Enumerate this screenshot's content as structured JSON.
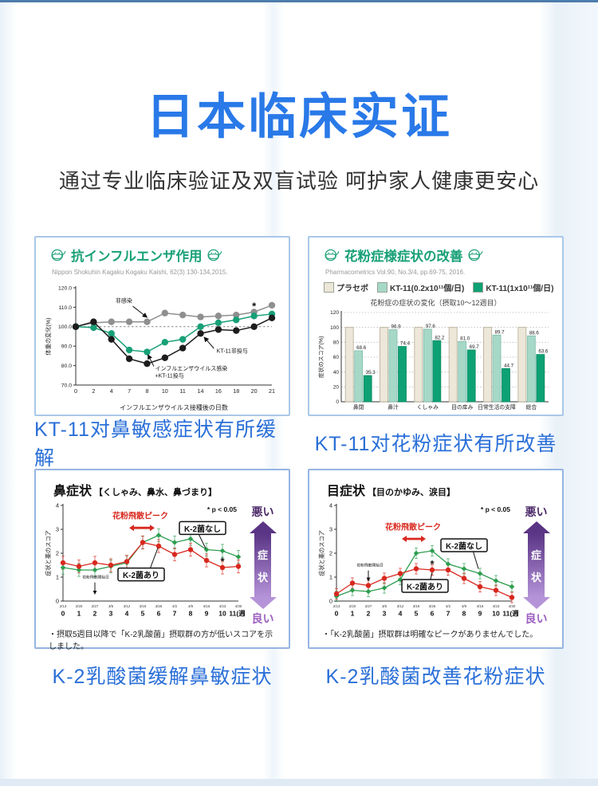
{
  "page": {
    "title": "日本临床实证",
    "subtitle": "通过专业临床验证及双盲试验 呵护家人健康更安心",
    "captions": {
      "flu": "KT-11对鼻敏感症状有所缓解",
      "pollen": "KT-11对花粉症状有所改善",
      "nose": "K-2乳酸菌缓解鼻敏症状",
      "eye": "K-2乳酸菌改善花粉症状"
    },
    "colors": {
      "title_blue": "#2979e8",
      "caption_blue": "#2a6fd8",
      "panel_border": "#a9c8e8",
      "header_green": "#18a077",
      "red": "#d8281e",
      "purple_dark": "#5a3485",
      "purple_light": "#b593d8"
    }
  },
  "panels": {
    "flu": {
      "header": "抗インフルエンザ作用",
      "citation": "Nippon Shokuhin Kagaku Kogaku Kaishi, 62(3) 130-134,2015."
    },
    "pollen": {
      "header": "花粉症様症状の改善",
      "citation": "Pharmacometrics Vol.90, No.3/4, pp.69-75, 2016.",
      "subtitle": "花粉症の症状の変化（摂取10～12週目）",
      "legend": [
        "プラセボ",
        "KT-11(0.2x10¹¹個/日)",
        "KT-11(1x10¹¹個/日)"
      ]
    },
    "nose": {
      "title": "鼻症状",
      "title_note": "【くしゃみ、鼻水、鼻づまり】",
      "axis_bad": "悪い",
      "axis_mid": [
        "症",
        "状"
      ],
      "axis_good": "良い",
      "footnote": "・摂取5週目以降で「K-2乳酸菌」摂取群の方が低いスコアを示しました。"
    },
    "eye": {
      "title": "目症状",
      "title_note": "【目のかゆみ、涙目】",
      "axis_bad": "悪い",
      "axis_mid": [
        "症",
        "状"
      ],
      "axis_good": "良い",
      "footnote": "・「K-2乳酸菌」摂取群は明確なピークがありませんでした。"
    }
  },
  "chart_data": [
    {
      "id": "flu",
      "type": "line",
      "title": "抗インフルエンザ作用",
      "xlabel": "インフルエンザウイルス接種後の日数",
      "ylabel": "体重の変化(%)",
      "x_tick_labels": [
        "0",
        "2",
        "4",
        "7",
        "8",
        "10",
        "11",
        "14",
        "16",
        "18",
        "20",
        "21"
      ],
      "ylim": [
        70,
        120
      ],
      "y_step": 10,
      "y_decimals": 1,
      "ref_line": 100,
      "series": [
        {
          "name": "非感染",
          "color": "#8f8f8f",
          "marker": "circle",
          "values": [
            100,
            102,
            102.5,
            102.5,
            102.5,
            107,
            106,
            105,
            105.5,
            106,
            107.5,
            111
          ]
        },
        {
          "name": "インフルエンザウイルス感染+KT-11投与",
          "color": "#17a077",
          "marker": "circle",
          "values": [
            100,
            99.5,
            96.5,
            88,
            87,
            92,
            93.5,
            100,
            102,
            103.5,
            105.5,
            106.5
          ]
        },
        {
          "name": "KT-11非投与",
          "color": "#1c1c1c",
          "marker": "circle",
          "values": [
            100,
            102.5,
            93.5,
            83.5,
            81,
            84,
            89,
            96.5,
            98.5,
            98,
            100,
            104.5
          ]
        }
      ],
      "annotations": [
        {
          "kind": "label-arrow",
          "text": "非感染",
          "tx": 2.7,
          "ty": 112.5,
          "x1": 3.2,
          "y1": 110.5,
          "x2": 4.0,
          "y2": 104.8,
          "anchor": "middle"
        },
        {
          "kind": "label-arrow",
          "text": "KT-11非投与",
          "tx": 7.9,
          "ty": 86.5,
          "x1": 7.75,
          "y1": 88.8,
          "x2": 7.2,
          "y2": 94.6,
          "anchor": "start"
        },
        {
          "kind": "label-arrow",
          "text": "インフルエンザウイルス感染",
          "text2": "+KT-11投与",
          "tx": 4.45,
          "ty": 77.6,
          "ty2": 73.8,
          "x1": 4.38,
          "y1": 79.6,
          "x2": 4.05,
          "y2": 85.6,
          "anchor": "start"
        },
        {
          "kind": "star",
          "x": 10,
          "y": 110
        }
      ]
    },
    {
      "id": "pollen",
      "type": "bar",
      "title": "花粉症の症状の変化（摂取10～12週目）",
      "ylabel": "症状のスコア(%)",
      "ylim": [
        0,
        120
      ],
      "y_step": 20,
      "grid": "dotted",
      "categories": [
        "鼻閉",
        "鼻汁",
        "くしゃみ",
        "目の痒み",
        "日常生活の支障",
        "総合"
      ],
      "series": [
        {
          "name": "プラセボ",
          "color": "#ece7d9",
          "border": "#b3ab93",
          "values": [
            100,
            100,
            100,
            100,
            100,
            100
          ]
        },
        {
          "name": "KT-11(0.2x10¹¹個/日)",
          "color": "#a6d8c8",
          "border": "#7dbcab",
          "values": [
            68.6,
            96.9,
            97.6,
            81.0,
            89.7,
            88.6
          ],
          "value_labels": [
            "68.6",
            "96.9",
            "97.6",
            "81.0",
            "89.7",
            "88.6"
          ]
        },
        {
          "name": "KT-11(1x10¹¹個/日)",
          "color": "#0ea173",
          "border": "#0b8a63",
          "values": [
            35.3,
            74.4,
            82.2,
            69.7,
            44.7,
            63.6
          ],
          "value_labels": [
            "35.3",
            "74.4",
            "82.2",
            "69.7",
            "44.7",
            "63.6"
          ]
        }
      ]
    },
    {
      "id": "nose",
      "type": "line",
      "title": "鼻症状【くしゃみ、鼻水、鼻づまり】",
      "ylabel": "症状と薬のスコア",
      "ylim": [
        0,
        4
      ],
      "y_step": 1,
      "x_dates": [
        "2/13",
        "2/20",
        "2/27",
        "3/5",
        "3/12",
        "3/19",
        "3/26",
        "4/2",
        "4/9",
        "4/16",
        "4/23",
        "4/30"
      ],
      "x_weeks": [
        "0",
        "1",
        "2",
        "3",
        "4",
        "5",
        "6",
        "7",
        "8",
        "9",
        "10",
        "11"
      ],
      "x_week_suffix": "(週)",
      "series": [
        {
          "name": "K-2菌なし",
          "color": "#2d9e50",
          "marker": "diamond",
          "error": 0.27,
          "values": [
            1.4,
            1.3,
            1.3,
            1.45,
            1.6,
            2.45,
            2.75,
            2.45,
            2.6,
            2.15,
            2.1,
            1.85
          ]
        },
        {
          "name": "K-2菌あり",
          "color": "#d8281e",
          "marker": "circle",
          "error": 0.27,
          "values": [
            1.6,
            1.45,
            1.6,
            1.5,
            1.65,
            2.45,
            2.3,
            1.95,
            2.15,
            1.7,
            1.4,
            1.45
          ]
        }
      ],
      "annotations": [
        {
          "kind": "pvalue",
          "text": "* p < 0.05"
        },
        {
          "kind": "peak",
          "text": "花粉飛散ピーク",
          "tx": 4.85,
          "ty": 3.45,
          "y": 3.06,
          "x1": 4.15,
          "x2": 5.75
        },
        {
          "kind": "box",
          "text": "K-2菌なし",
          "cx": 8.75,
          "cy": 3.02,
          "lx1": 8.45,
          "ly1": 2.88,
          "lx2": 8.95,
          "ly2": 2.2
        },
        {
          "kind": "box",
          "text": "K-2菌あり",
          "cx": 4.9,
          "cy": 1.08,
          "lx1": 5.4,
          "ly1": 1.25,
          "lx2": 5.95,
          "ly2": 2.22
        },
        {
          "kind": "vmark",
          "text": "花粉飛散開始日",
          "tx": 2.05,
          "ty": 0.95,
          "ax": 2,
          "y1": 0.78,
          "y2": 0.3
        },
        {
          "kind": "star",
          "x": 10,
          "y": 1.62
        }
      ]
    },
    {
      "id": "eye",
      "type": "line",
      "title": "目症状【目のかゆみ、涙目】",
      "ylabel": "症状と薬のスコア",
      "ylim": [
        0,
        4
      ],
      "y_step": 1,
      "x_dates": [
        "2/13",
        "2/20",
        "2/27",
        "3/5",
        "3/12",
        "3/19",
        "3/26",
        "4/2",
        "4/9",
        "4/16",
        "4/23",
        "4/30"
      ],
      "x_weeks": [
        "0",
        "1",
        "2",
        "3",
        "4",
        "5",
        "6",
        "7",
        "8",
        "9",
        "10",
        "11"
      ],
      "x_week_suffix": "(週)",
      "series": [
        {
          "name": "K-2菌なし",
          "color": "#2d9e50",
          "marker": "diamond",
          "error": 0.22,
          "values": [
            0.2,
            0.45,
            0.4,
            0.55,
            0.9,
            2.0,
            2.1,
            1.55,
            1.35,
            1.15,
            0.85,
            0.6
          ]
        },
        {
          "name": "K-2菌あり",
          "color": "#d8281e",
          "marker": "circle",
          "error": 0.22,
          "values": [
            0.3,
            0.75,
            0.65,
            0.95,
            1.15,
            1.35,
            1.3,
            1.3,
            0.95,
            0.6,
            0.45,
            0.15
          ]
        }
      ],
      "annotations": [
        {
          "kind": "pvalue",
          "text": "* p < 0.05"
        },
        {
          "kind": "peak",
          "text": "花粉飛散ピーク",
          "tx": 4.8,
          "ty": 2.98,
          "y": 2.6,
          "x1": 4.1,
          "x2": 5.6
        },
        {
          "kind": "box",
          "text": "K-2菌なし",
          "cx": 8.0,
          "cy": 2.3,
          "lx1": 8.55,
          "ly1": 2.12,
          "lx2": 8.9,
          "ly2": 1.35
        },
        {
          "kind": "box",
          "text": "K-2菌あり",
          "cx": 5.55,
          "cy": 0.6,
          "lx1": 5.85,
          "ly1": 0.78,
          "lx2": 6.0,
          "ly2": 1.2
        },
        {
          "kind": "vmark",
          "text": "花粉飛散開始日",
          "tx": 2.1,
          "ty": 1.45,
          "ax": 2,
          "y1": 1.28,
          "y2": 0.85
        },
        {
          "kind": "star",
          "x": 6,
          "y": 1.5
        }
      ]
    }
  ]
}
